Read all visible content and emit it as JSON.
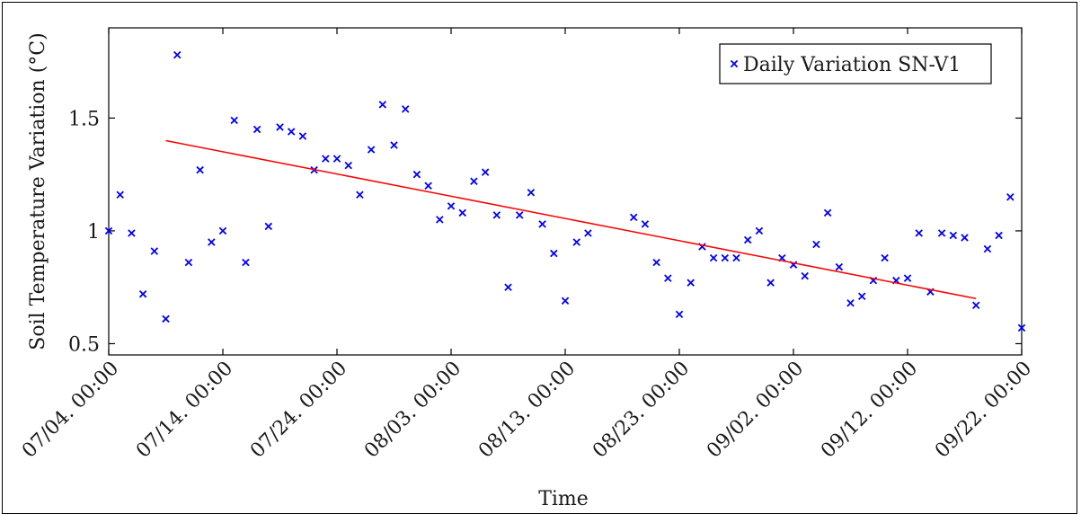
{
  "chart_data": {
    "type": "scatter",
    "title": "",
    "xlabel": "Time",
    "ylabel": "Soil Temperature Variation (°C)",
    "xlim": [
      "07/04. 00:00",
      "09/22. 00:00"
    ],
    "ylim": [
      0.45,
      1.9
    ],
    "grid": false,
    "legend_position": "top-right",
    "x_ticks": [
      "07/04. 00:00",
      "07/14. 00:00",
      "07/24. 00:00",
      "08/03. 00:00",
      "08/13. 00:00",
      "08/23. 00:00",
      "09/02. 00:00",
      "09/12. 00:00",
      "09/22. 00:00"
    ],
    "y_ticks": [
      "0.5",
      "1",
      "1.5"
    ],
    "y_tick_values": [
      0.5,
      1.0,
      1.5
    ],
    "series": [
      {
        "name": "Daily Variation SN-V1",
        "color": "#0000ff",
        "marker": "x",
        "points": [
          [
            "07/04",
            1.0
          ],
          [
            "07/05",
            1.16
          ],
          [
            "07/06",
            0.99
          ],
          [
            "07/07",
            0.72
          ],
          [
            "07/08",
            0.91
          ],
          [
            "07/09",
            0.61
          ],
          [
            "07/10",
            1.78
          ],
          [
            "07/11",
            0.86
          ],
          [
            "07/12",
            1.27
          ],
          [
            "07/13",
            0.95
          ],
          [
            "07/14",
            1.0
          ],
          [
            "07/15",
            1.49
          ],
          [
            "07/16",
            0.86
          ],
          [
            "07/17",
            1.45
          ],
          [
            "07/18",
            1.02
          ],
          [
            "07/19",
            1.46
          ],
          [
            "07/20",
            1.44
          ],
          [
            "07/21",
            1.42
          ],
          [
            "07/22",
            1.27
          ],
          [
            "07/23",
            1.32
          ],
          [
            "07/24",
            1.32
          ],
          [
            "07/25",
            1.29
          ],
          [
            "07/26",
            1.16
          ],
          [
            "07/27",
            1.36
          ],
          [
            "07/28",
            1.56
          ],
          [
            "07/29",
            1.38
          ],
          [
            "07/30",
            1.54
          ],
          [
            "07/31",
            1.25
          ],
          [
            "08/01",
            1.2
          ],
          [
            "08/02",
            1.05
          ],
          [
            "08/03",
            1.11
          ],
          [
            "08/04",
            1.08
          ],
          [
            "08/05",
            1.22
          ],
          [
            "08/06",
            1.26
          ],
          [
            "08/07",
            1.07
          ],
          [
            "08/08",
            0.75
          ],
          [
            "08/09",
            1.07
          ],
          [
            "08/10",
            1.17
          ],
          [
            "08/11",
            1.03
          ],
          [
            "08/12",
            0.9
          ],
          [
            "08/13",
            0.69
          ],
          [
            "08/14",
            0.95
          ],
          [
            "08/15",
            0.99
          ],
          [
            "08/19",
            1.06
          ],
          [
            "08/20",
            1.03
          ],
          [
            "08/21",
            0.86
          ],
          [
            "08/22",
            0.79
          ],
          [
            "08/23",
            0.63
          ],
          [
            "08/24",
            0.77
          ],
          [
            "08/25",
            0.93
          ],
          [
            "08/26",
            0.88
          ],
          [
            "08/27",
            0.88
          ],
          [
            "08/28",
            0.88
          ],
          [
            "08/29",
            0.96
          ],
          [
            "08/30",
            1.0
          ],
          [
            "08/31",
            0.77
          ],
          [
            "09/01",
            0.88
          ],
          [
            "09/02",
            0.85
          ],
          [
            "09/03",
            0.8
          ],
          [
            "09/04",
            0.94
          ],
          [
            "09/05",
            1.08
          ],
          [
            "09/06",
            0.84
          ],
          [
            "09/07",
            0.68
          ],
          [
            "09/08",
            0.71
          ],
          [
            "09/09",
            0.78
          ],
          [
            "09/10",
            0.88
          ],
          [
            "09/11",
            0.78
          ],
          [
            "09/12",
            0.79
          ],
          [
            "09/13",
            0.99
          ],
          [
            "09/14",
            0.73
          ],
          [
            "09/15",
            0.99
          ],
          [
            "09/16",
            0.98
          ],
          [
            "09/17",
            0.97
          ],
          [
            "09/18",
            0.67
          ],
          [
            "09/19",
            0.92
          ],
          [
            "09/20",
            0.98
          ],
          [
            "09/21",
            1.15
          ],
          [
            "09/22",
            0.57
          ]
        ]
      },
      {
        "role": "trend-line",
        "color": "#ff0000",
        "points": [
          [
            "07/09",
            1.4
          ],
          [
            "09/18",
            0.7
          ]
        ]
      }
    ]
  }
}
